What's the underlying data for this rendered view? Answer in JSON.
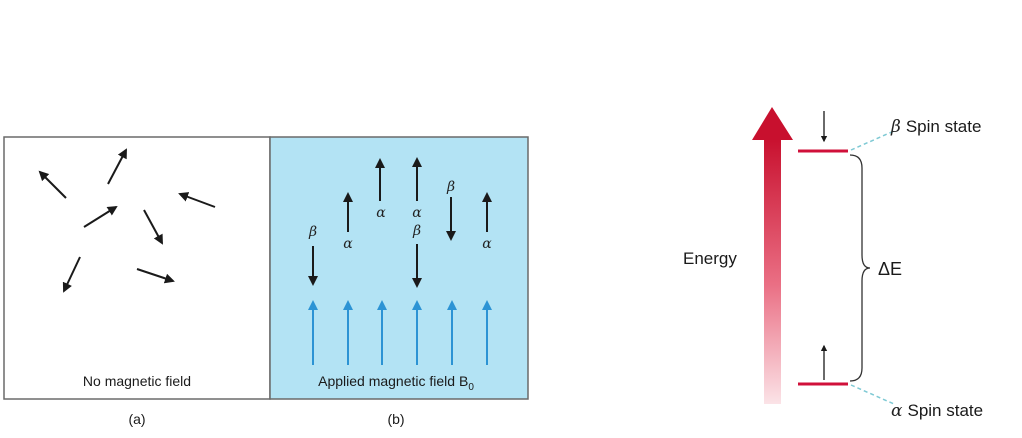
{
  "panel_a": {
    "caption": "No magnetic field",
    "letter": "(a)",
    "colors": {
      "background": "#ffffff",
      "border": "#6a6a6a",
      "arrow": "#1a1a1a"
    }
  },
  "panel_b": {
    "caption_prefix": "Applied magnetic field B",
    "caption_subscript": "0",
    "letter": "(b)",
    "colors": {
      "background": "#b3e3f4",
      "border": "#6a6a6a",
      "field_arrow": "#2c93d4",
      "spin_arrow": "#1a1a1a"
    },
    "spins": [
      {
        "state": "beta",
        "symbol": "β"
      },
      {
        "state": "alpha",
        "symbol": "α"
      },
      {
        "state": "alpha",
        "symbol": "α"
      },
      {
        "state": "alpha",
        "symbol": "α"
      },
      {
        "state": "beta",
        "symbol": "β"
      },
      {
        "state": "beta",
        "symbol": "β"
      },
      {
        "state": "alpha",
        "symbol": "α"
      }
    ]
  },
  "energy_diagram": {
    "axis_label": "Energy",
    "delta_label": "ΔE",
    "beta_symbol": "β",
    "beta_label": "Spin state",
    "alpha_symbol": "α",
    "alpha_label": "Spin state",
    "colors": {
      "arrow_top": "#c8102e",
      "arrow_bottom": "#fbe3e7",
      "level": "#d0103a",
      "connector": "#7ec9d4",
      "brace": "#333333"
    }
  }
}
